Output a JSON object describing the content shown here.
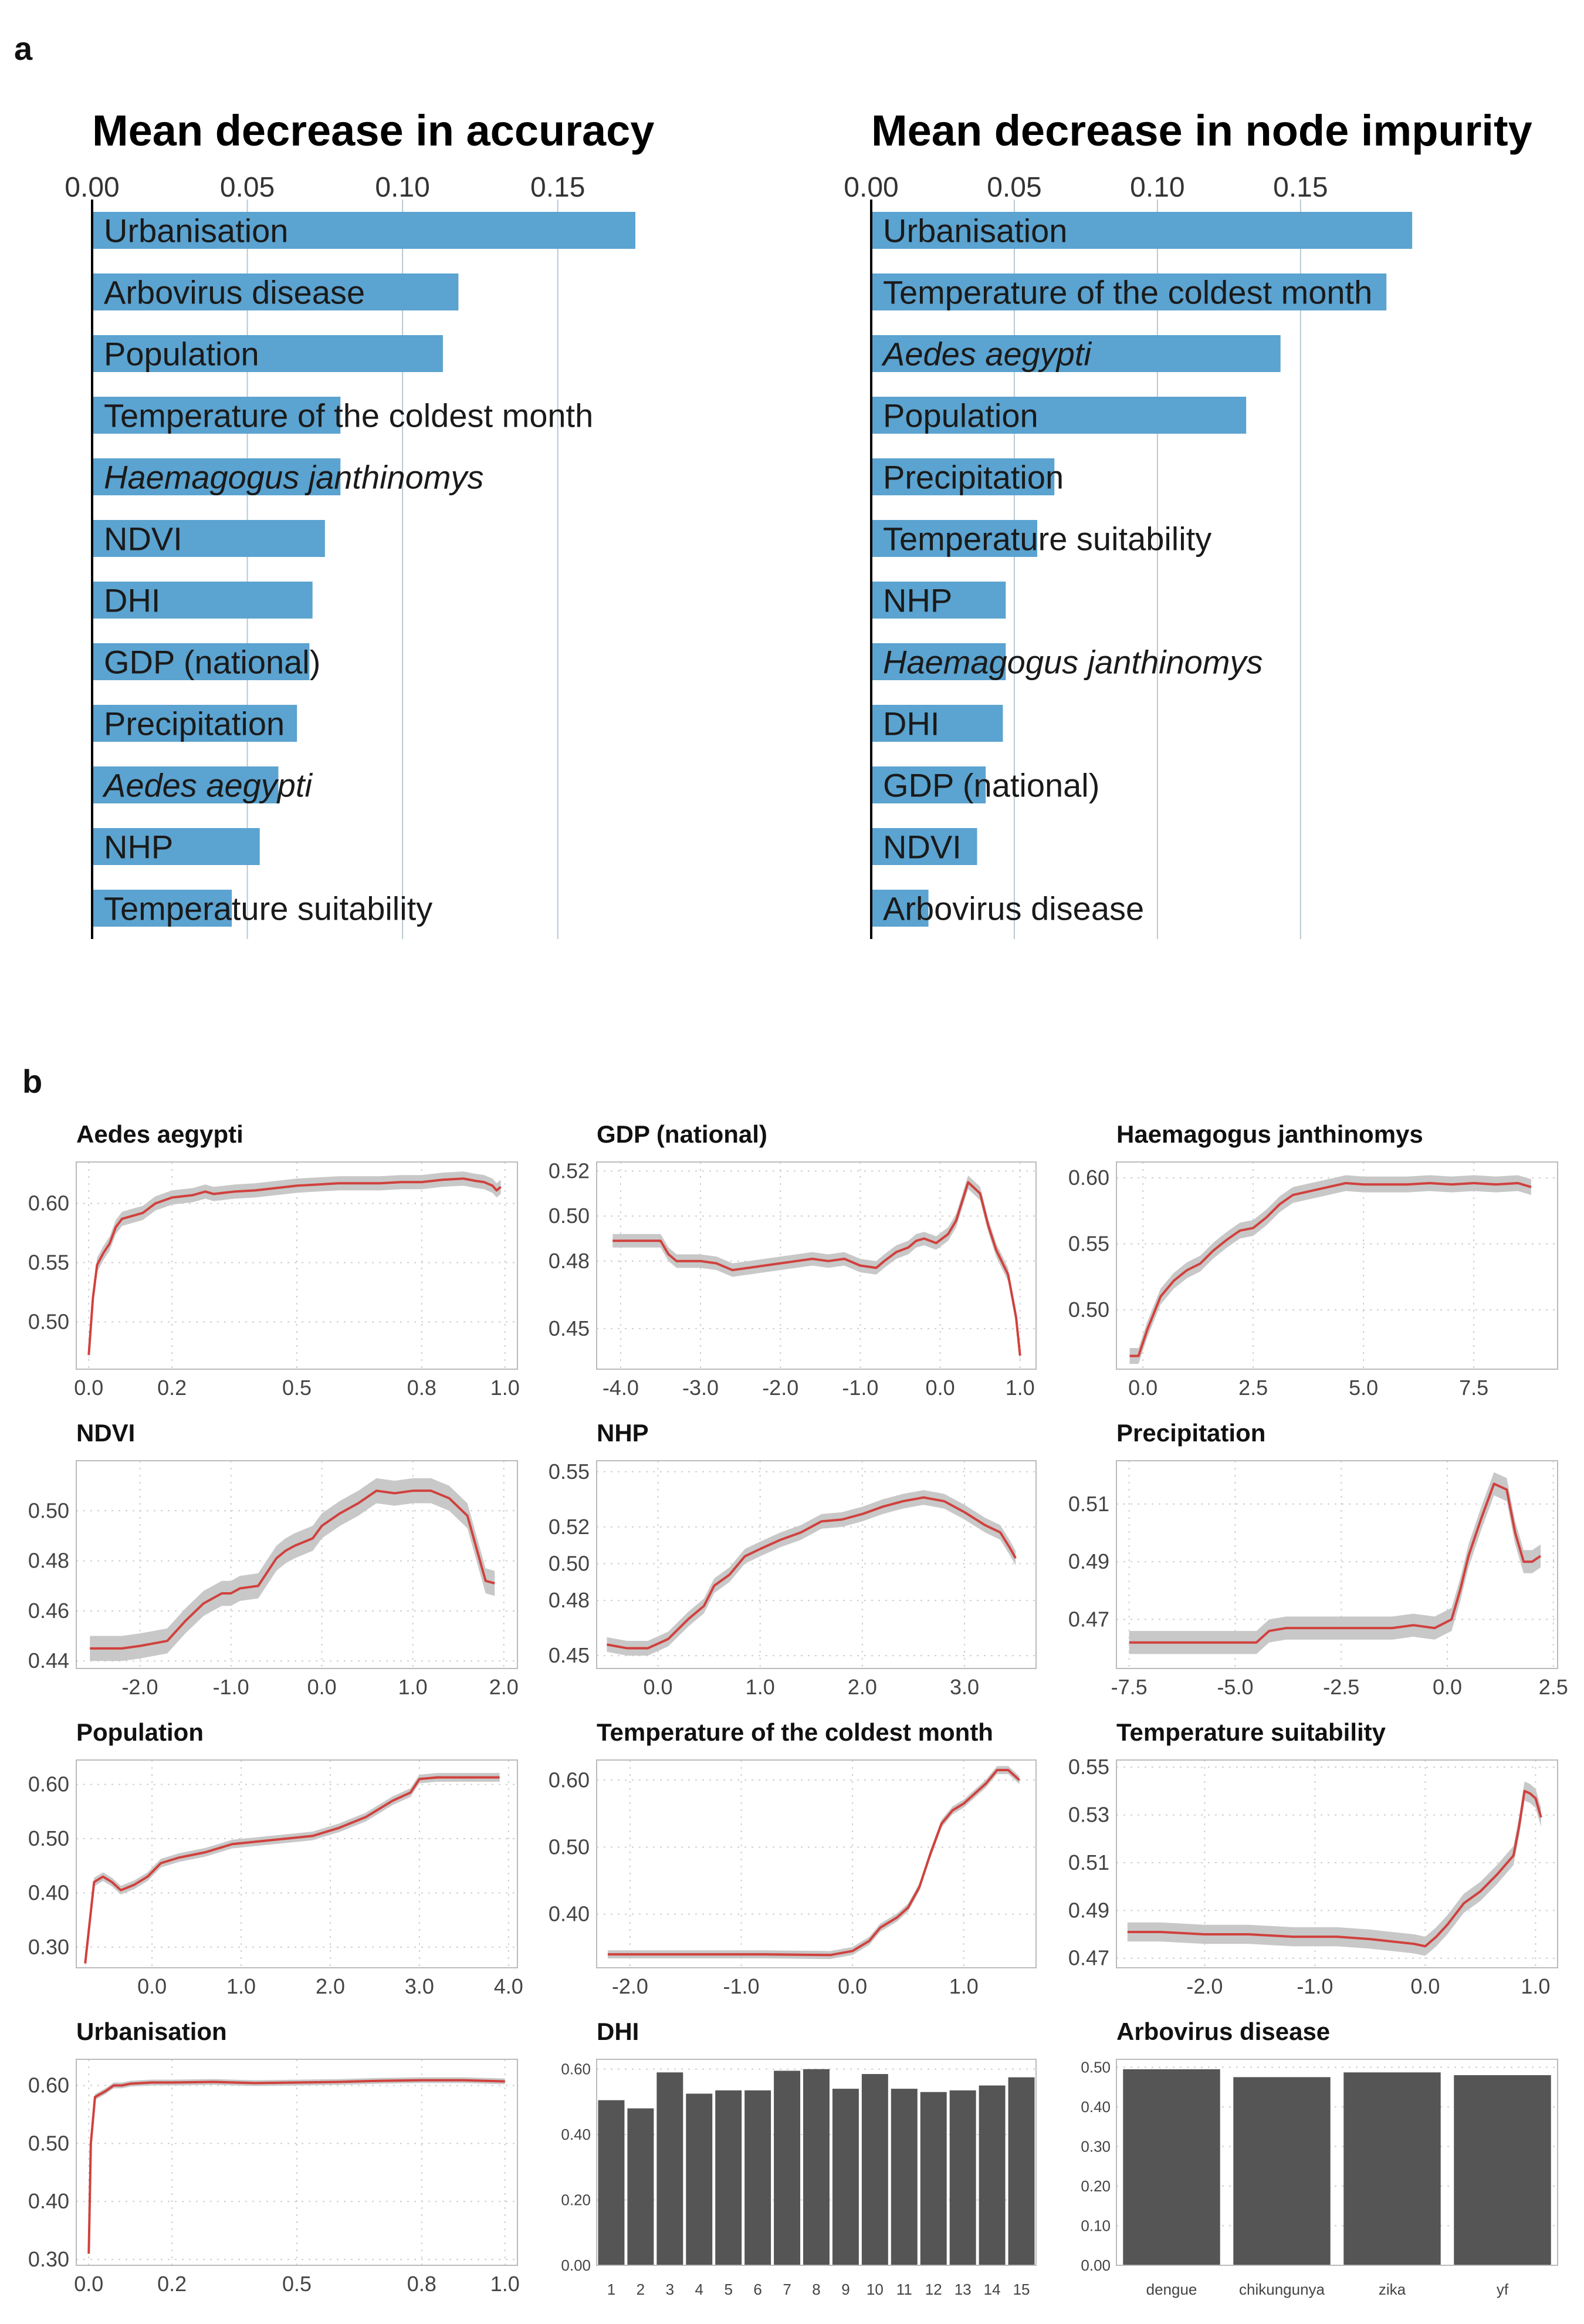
{
  "panel_labels": {
    "a": "a",
    "b": "b"
  },
  "colors": {
    "bar": "#5ba3d0",
    "line": "#d0413d",
    "band": "#c8c8c8",
    "dark_bar": "#555555",
    "grid": "#cfcfcf",
    "vgrid_a": "#b7c9d3"
  },
  "chart_data": [
    {
      "type": "bar",
      "orientation": "horizontal",
      "title": "Mean decrease in accuracy",
      "xticks": [
        "0.00",
        "0.05",
        "0.10",
        "0.15"
      ],
      "xlim": [
        0,
        0.175
      ],
      "categories": [
        "Urbanisation",
        "Arbovirus disease",
        "Population",
        "Temperature of the coldest month",
        "Haemagogus janthinomys",
        "NDVI",
        "DHI",
        "GDP (national)",
        "Precipitation",
        "Aedes aegypti",
        "NHP",
        "Temperature suitability"
      ],
      "italic": [
        false,
        false,
        false,
        false,
        true,
        false,
        false,
        false,
        false,
        true,
        false,
        false
      ],
      "values": [
        0.175,
        0.118,
        0.113,
        0.08,
        0.08,
        0.075,
        0.071,
        0.07,
        0.066,
        0.06,
        0.054,
        0.045
      ]
    },
    {
      "type": "bar",
      "orientation": "horizontal",
      "title": "Mean decrease in node impurity",
      "xticks": [
        "0.00",
        "0.05",
        "0.10",
        "0.15"
      ],
      "xlim": [
        0,
        0.19
      ],
      "categories": [
        "Urbanisation",
        "Temperature of the coldest month",
        "Aedes aegypti",
        "Population",
        "Precipitation",
        "Temperature suitability",
        "NHP",
        "Haemagogus janthinomys",
        "DHI",
        "GDP (national)",
        "NDVI",
        "Arbovirus disease"
      ],
      "italic": [
        false,
        false,
        true,
        false,
        false,
        false,
        false,
        true,
        false,
        false,
        false,
        false
      ],
      "values": [
        0.189,
        0.18,
        0.143,
        0.131,
        0.064,
        0.058,
        0.047,
        0.047,
        0.046,
        0.04,
        0.037,
        0.02
      ]
    },
    {
      "type": "line",
      "title": "Aedes aegypti",
      "xlim": [
        -0.03,
        1.03
      ],
      "ylim": [
        0.46,
        0.635
      ],
      "xticks": [
        0,
        0.2,
        0.5,
        0.8,
        1.0
      ],
      "xtick_labels": [
        "0.0",
        "0.2",
        "0.5",
        "0.8",
        "1.0"
      ],
      "yticks": [
        0.5,
        0.55,
        0.6
      ],
      "ytick_labels": [
        "0.50",
        "0.55",
        "0.60"
      ],
      "x": [
        0.0,
        0.01,
        0.02,
        0.035,
        0.05,
        0.065,
        0.08,
        0.1,
        0.13,
        0.16,
        0.2,
        0.25,
        0.28,
        0.3,
        0.35,
        0.4,
        0.45,
        0.5,
        0.55,
        0.6,
        0.65,
        0.7,
        0.75,
        0.8,
        0.85,
        0.9,
        0.93,
        0.95,
        0.97,
        0.98,
        0.99
      ],
      "y": [
        0.472,
        0.52,
        0.548,
        0.558,
        0.566,
        0.58,
        0.587,
        0.589,
        0.592,
        0.6,
        0.605,
        0.607,
        0.61,
        0.608,
        0.61,
        0.611,
        0.613,
        0.615,
        0.616,
        0.617,
        0.617,
        0.617,
        0.618,
        0.618,
        0.62,
        0.621,
        0.619,
        0.618,
        0.615,
        0.611,
        0.614
      ],
      "band": 0.006
    },
    {
      "type": "line",
      "title": "GDP (national)",
      "xlim": [
        -4.3,
        1.2
      ],
      "ylim": [
        0.432,
        0.524
      ],
      "xticks": [
        -4,
        -3,
        -2,
        -1,
        0,
        1
      ],
      "xtick_labels": [
        "-4.0",
        "-3.0",
        "-2.0",
        "-1.0",
        "0.0",
        "1.0"
      ],
      "yticks": [
        0.45,
        0.48,
        0.5,
        0.52
      ],
      "ytick_labels": [
        "0.45",
        "0.48",
        "0.50",
        "0.52"
      ],
      "x": [
        -4.1,
        -3.8,
        -3.5,
        -3.4,
        -3.3,
        -3.0,
        -2.8,
        -2.6,
        -2.4,
        -2.2,
        -2.0,
        -1.8,
        -1.6,
        -1.4,
        -1.2,
        -1.0,
        -0.8,
        -0.7,
        -0.55,
        -0.4,
        -0.3,
        -0.2,
        -0.05,
        0.1,
        0.2,
        0.35,
        0.5,
        0.6,
        0.7,
        0.85,
        0.95,
        1.0
      ],
      "y": [
        0.489,
        0.489,
        0.489,
        0.483,
        0.48,
        0.48,
        0.479,
        0.476,
        0.477,
        0.478,
        0.479,
        0.48,
        0.481,
        0.48,
        0.481,
        0.478,
        0.477,
        0.48,
        0.484,
        0.486,
        0.489,
        0.49,
        0.488,
        0.492,
        0.498,
        0.515,
        0.51,
        0.496,
        0.485,
        0.474,
        0.455,
        0.438
      ],
      "band": 0.003
    },
    {
      "type": "line",
      "title": "Haemagogus janthinomys",
      "xlim": [
        -0.6,
        9.4
      ],
      "ylim": [
        0.455,
        0.612
      ],
      "xticks": [
        0,
        2.5,
        5,
        7.5
      ],
      "xtick_labels": [
        "0.0",
        "2.5",
        "5.0",
        "7.5"
      ],
      "yticks": [
        0.5,
        0.55,
        0.6
      ],
      "ytick_labels": [
        "0.50",
        "0.55",
        "0.60"
      ],
      "x": [
        -0.3,
        -0.1,
        0.1,
        0.4,
        0.7,
        1.0,
        1.3,
        1.6,
        1.9,
        2.2,
        2.5,
        2.8,
        3.1,
        3.4,
        3.8,
        4.2,
        4.6,
        5.0,
        5.5,
        6.0,
        6.5,
        7.0,
        7.5,
        8.0,
        8.5,
        8.8
      ],
      "y": [
        0.465,
        0.465,
        0.485,
        0.51,
        0.522,
        0.53,
        0.535,
        0.545,
        0.553,
        0.56,
        0.562,
        0.57,
        0.58,
        0.587,
        0.59,
        0.593,
        0.596,
        0.595,
        0.595,
        0.595,
        0.596,
        0.595,
        0.596,
        0.595,
        0.596,
        0.593
      ],
      "band": 0.006
    },
    {
      "type": "line",
      "title": "NDVI",
      "xlim": [
        -2.7,
        2.15
      ],
      "ylim": [
        0.437,
        0.52
      ],
      "xticks": [
        -2,
        -1,
        0,
        1,
        2
      ],
      "xtick_labels": [
        "-2.0",
        "-1.0",
        "0.0",
        "1.0",
        "2.0"
      ],
      "yticks": [
        0.44,
        0.46,
        0.48,
        0.5
      ],
      "ytick_labels": [
        "0.44",
        "0.46",
        "0.48",
        "0.50"
      ],
      "x": [
        -2.55,
        -2.2,
        -2.0,
        -1.7,
        -1.5,
        -1.3,
        -1.1,
        -1.0,
        -0.9,
        -0.7,
        -0.5,
        -0.4,
        -0.3,
        -0.1,
        0.0,
        0.2,
        0.4,
        0.6,
        0.8,
        1.0,
        1.2,
        1.4,
        1.6,
        1.7,
        1.8,
        1.9
      ],
      "y": [
        0.445,
        0.445,
        0.446,
        0.448,
        0.456,
        0.463,
        0.467,
        0.467,
        0.469,
        0.47,
        0.481,
        0.484,
        0.486,
        0.489,
        0.494,
        0.499,
        0.503,
        0.508,
        0.507,
        0.508,
        0.508,
        0.505,
        0.498,
        0.485,
        0.472,
        0.471
      ],
      "band": 0.005
    },
    {
      "type": "line",
      "title": "NHP",
      "xlim": [
        -0.6,
        3.7
      ],
      "ylim": [
        0.443,
        0.556
      ],
      "xticks": [
        0,
        1,
        2,
        3
      ],
      "xtick_labels": [
        "0.0",
        "1.0",
        "2.0",
        "3.0"
      ],
      "yticks": [
        0.45,
        0.48,
        0.5,
        0.52,
        0.55
      ],
      "ytick_labels": [
        "0.45",
        "0.48",
        "0.50",
        "0.52",
        "0.55"
      ],
      "x": [
        -0.5,
        -0.3,
        -0.1,
        0.1,
        0.3,
        0.45,
        0.55,
        0.7,
        0.85,
        1.0,
        1.2,
        1.4,
        1.6,
        1.8,
        2.0,
        2.2,
        2.4,
        2.6,
        2.8,
        3.0,
        3.2,
        3.35,
        3.45,
        3.5
      ],
      "y": [
        0.456,
        0.454,
        0.454,
        0.459,
        0.47,
        0.477,
        0.488,
        0.494,
        0.504,
        0.508,
        0.513,
        0.517,
        0.523,
        0.524,
        0.527,
        0.531,
        0.534,
        0.536,
        0.534,
        0.528,
        0.521,
        0.517,
        0.508,
        0.503
      ],
      "band": 0.004
    },
    {
      "type": "line",
      "title": "Precipitation",
      "xlim": [
        -7.8,
        2.6
      ],
      "ylim": [
        0.453,
        0.525
      ],
      "xticks": [
        -7.5,
        -5,
        -2.5,
        0,
        2.5
      ],
      "xtick_labels": [
        "-7.5",
        "-5.0",
        "-2.5",
        "0.0",
        "2.5"
      ],
      "yticks": [
        0.47,
        0.49,
        0.51
      ],
      "ytick_labels": [
        "0.47",
        "0.49",
        "0.51"
      ],
      "x": [
        -7.5,
        -6.5,
        -5.5,
        -4.5,
        -4.2,
        -3.8,
        -3.3,
        -2.8,
        -2.3,
        -1.8,
        -1.3,
        -0.8,
        -0.3,
        0.1,
        0.3,
        0.5,
        0.8,
        1.1,
        1.4,
        1.6,
        1.8,
        2.0,
        2.2
      ],
      "y": [
        0.462,
        0.462,
        0.462,
        0.462,
        0.466,
        0.467,
        0.467,
        0.467,
        0.467,
        0.467,
        0.467,
        0.468,
        0.467,
        0.47,
        0.48,
        0.492,
        0.505,
        0.517,
        0.515,
        0.5,
        0.49,
        0.49,
        0.492
      ],
      "band": 0.004
    },
    {
      "type": "line",
      "title": "Population",
      "xlim": [
        -0.85,
        4.1
      ],
      "ylim": [
        0.262,
        0.645
      ],
      "xticks": [
        0,
        1,
        2,
        3,
        4
      ],
      "xtick_labels": [
        "0.0",
        "1.0",
        "2.0",
        "3.0",
        "4.0"
      ],
      "yticks": [
        0.3,
        0.4,
        0.5,
        0.6
      ],
      "ytick_labels": [
        "0.30",
        "0.40",
        "0.50",
        "0.60"
      ],
      "x": [
        -0.75,
        -0.65,
        -0.55,
        -0.45,
        -0.35,
        -0.2,
        -0.05,
        0.1,
        0.3,
        0.6,
        0.9,
        1.2,
        1.5,
        1.8,
        2.1,
        2.4,
        2.7,
        2.9,
        3.0,
        3.2,
        3.5,
        3.8,
        3.9
      ],
      "y": [
        0.27,
        0.42,
        0.43,
        0.42,
        0.405,
        0.415,
        0.43,
        0.455,
        0.465,
        0.475,
        0.49,
        0.495,
        0.5,
        0.505,
        0.52,
        0.54,
        0.57,
        0.585,
        0.61,
        0.613,
        0.613,
        0.613,
        0.613
      ],
      "band": 0.008
    },
    {
      "type": "line",
      "title": "Temperature of the coldest month",
      "xlim": [
        -2.3,
        1.65
      ],
      "ylim": [
        0.32,
        0.63
      ],
      "xticks": [
        -2,
        -1,
        0,
        1
      ],
      "xtick_labels": [
        "-2.0",
        "-1.0",
        "0.0",
        "1.0"
      ],
      "yticks": [
        0.4,
        0.5,
        0.6
      ],
      "ytick_labels": [
        "0.40",
        "0.50",
        "0.60"
      ],
      "x": [
        -2.2,
        -1.5,
        -0.8,
        -0.2,
        0.0,
        0.15,
        0.25,
        0.4,
        0.5,
        0.6,
        0.7,
        0.8,
        0.9,
        1.0,
        1.1,
        1.2,
        1.3,
        1.4,
        1.5
      ],
      "y": [
        0.34,
        0.34,
        0.34,
        0.339,
        0.345,
        0.36,
        0.38,
        0.395,
        0.41,
        0.44,
        0.49,
        0.535,
        0.555,
        0.565,
        0.58,
        0.595,
        0.615,
        0.615,
        0.6
      ],
      "band": 0.006
    },
    {
      "type": "line",
      "title": "Temperature suitability",
      "xlim": [
        -2.8,
        1.2
      ],
      "ylim": [
        0.466,
        0.553
      ],
      "xticks": [
        -2,
        -1,
        0,
        1
      ],
      "xtick_labels": [
        "-2.0",
        "-1.0",
        "0.0",
        "1.0"
      ],
      "yticks": [
        0.47,
        0.49,
        0.51,
        0.53,
        0.55
      ],
      "ytick_labels": [
        "0.47",
        "0.49",
        "0.51",
        "0.53",
        "0.55"
      ],
      "x": [
        -2.7,
        -2.4,
        -2.0,
        -1.6,
        -1.2,
        -0.8,
        -0.5,
        -0.3,
        -0.1,
        0.0,
        0.1,
        0.2,
        0.35,
        0.5,
        0.65,
        0.8,
        0.85,
        0.9,
        0.95,
        1.0,
        1.05
      ],
      "y": [
        0.481,
        0.481,
        0.48,
        0.48,
        0.479,
        0.479,
        0.478,
        0.477,
        0.476,
        0.475,
        0.479,
        0.484,
        0.493,
        0.498,
        0.505,
        0.513,
        0.525,
        0.54,
        0.539,
        0.537,
        0.529
      ],
      "band": 0.004
    },
    {
      "type": "line",
      "title": "Urbanisation",
      "xlim": [
        -0.03,
        1.03
      ],
      "ylim": [
        0.29,
        0.645
      ],
      "xticks": [
        0,
        0.2,
        0.5,
        0.8,
        1.0
      ],
      "xtick_labels": [
        "0.0",
        "0.2",
        "0.5",
        "0.8",
        "1.0"
      ],
      "yticks": [
        0.3,
        0.4,
        0.5,
        0.6
      ],
      "ytick_labels": [
        "0.30",
        "0.40",
        "0.50",
        "0.60"
      ],
      "x": [
        0.0,
        0.005,
        0.015,
        0.04,
        0.06,
        0.08,
        0.1,
        0.15,
        0.2,
        0.3,
        0.4,
        0.5,
        0.6,
        0.7,
        0.8,
        0.9,
        1.0
      ],
      "y": [
        0.31,
        0.5,
        0.58,
        0.59,
        0.6,
        0.6,
        0.603,
        0.605,
        0.605,
        0.606,
        0.604,
        0.605,
        0.606,
        0.608,
        0.609,
        0.609,
        0.607
      ],
      "band": 0.005
    },
    {
      "type": "bar",
      "title": "DHI",
      "categories": [
        "1",
        "2",
        "3",
        "4",
        "5",
        "6",
        "7",
        "8",
        "9",
        "10",
        "11",
        "12",
        "13",
        "14",
        "15"
      ],
      "values": [
        0.505,
        0.48,
        0.59,
        0.525,
        0.535,
        0.535,
        0.595,
        0.6,
        0.54,
        0.585,
        0.54,
        0.53,
        0.535,
        0.55,
        0.575
      ],
      "ylim": [
        0,
        0.63
      ],
      "yticks": [
        0,
        0.2,
        0.4,
        0.6
      ],
      "ytick_labels": [
        "0.00",
        "0.20",
        "0.40",
        "0.60"
      ]
    },
    {
      "type": "bar",
      "title": "Arbovirus disease",
      "categories": [
        "dengue",
        "chikungunya",
        "zika",
        "yf"
      ],
      "values": [
        0.495,
        0.475,
        0.487,
        0.48
      ],
      "ylim": [
        0,
        0.52
      ],
      "yticks": [
        0,
        0.1,
        0.2,
        0.3,
        0.4,
        0.5
      ],
      "ytick_labels": [
        "0.00",
        "0.10",
        "0.20",
        "0.30",
        "0.40",
        "0.50"
      ]
    }
  ]
}
